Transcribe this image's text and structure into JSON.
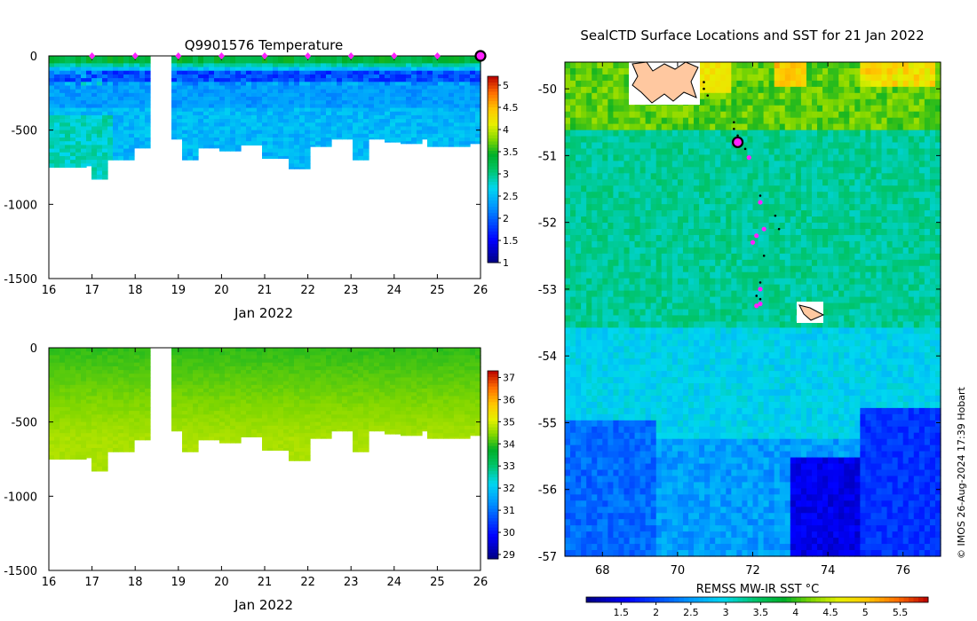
{
  "chart_data": [
    {
      "type": "heatmap",
      "title": "Q9901576  Temperature",
      "xlabel": "Jan 2022",
      "ylabel": "",
      "x_ticks": [
        "16",
        "17",
        "18",
        "19",
        "20",
        "21",
        "22",
        "23",
        "24",
        "25",
        "26"
      ],
      "y_ticks": [
        "0",
        "-500",
        "-1000",
        "-1500"
      ],
      "xlim": [
        16,
        26
      ],
      "ylim": [
        -1500,
        0
      ],
      "colorbar": {
        "min": 1,
        "max": 5.2,
        "ticks": [
          "1",
          "1.5",
          "2",
          "2.5",
          "3",
          "3.5",
          "4",
          "4.5",
          "5"
        ]
      },
      "profile_times": [
        17,
        18,
        19,
        20,
        21,
        22,
        23,
        24,
        25,
        26
      ],
      "highlight_time": 26,
      "data_gap": [
        18.35,
        18.9
      ],
      "max_depth_by_day": [
        [
          16.0,
          -750
        ],
        [
          16.9,
          -740
        ],
        [
          17.0,
          -830
        ],
        [
          17.3,
          -700
        ],
        [
          17.8,
          -700
        ],
        [
          18.0,
          -620
        ],
        [
          18.4,
          -600
        ],
        [
          18.9,
          -560
        ],
        [
          19.1,
          -700
        ],
        [
          19.5,
          -620
        ],
        [
          20.0,
          -640
        ],
        [
          20.4,
          -600
        ],
        [
          20.9,
          -600
        ],
        [
          21.0,
          -690
        ],
        [
          21.5,
          -660
        ],
        [
          21.6,
          -760
        ],
        [
          22.1,
          -610
        ],
        [
          22.5,
          -560
        ],
        [
          23.0,
          -700
        ],
        [
          23.4,
          -560
        ],
        [
          23.8,
          -580
        ],
        [
          24.2,
          -590
        ],
        [
          24.6,
          -560
        ],
        [
          24.8,
          -610
        ],
        [
          25.4,
          -610
        ],
        [
          25.8,
          -590
        ]
      ]
    },
    {
      "type": "heatmap",
      "title": "",
      "xlabel": "Jan 2022",
      "ylabel": "",
      "x_ticks": [
        "16",
        "17",
        "18",
        "19",
        "20",
        "21",
        "22",
        "23",
        "24",
        "25",
        "26"
      ],
      "y_ticks": [
        "0",
        "-500",
        "-1000",
        "-1500"
      ],
      "xlim": [
        16,
        26
      ],
      "ylim": [
        -1500,
        0
      ],
      "colorbar": {
        "min": 28.8,
        "max": 37.3,
        "ticks": [
          "29",
          "30",
          "31",
          "32",
          "33",
          "34",
          "35",
          "36",
          "37"
        ]
      },
      "data_gap": [
        18.35,
        18.9
      ]
    },
    {
      "type": "heatmap",
      "title": "SealCTD Surface Locations and SST for 21 Jan 2022",
      "xlabel": "",
      "ylabel": "",
      "x_ticks": [
        "68",
        "70",
        "72",
        "74",
        "76"
      ],
      "y_ticks": [
        "-50",
        "-51",
        "-52",
        "-53",
        "-54",
        "-55",
        "-56",
        "-57"
      ],
      "xlim": [
        67,
        77
      ],
      "ylim": [
        -57,
        -49.6
      ],
      "colorbar": {
        "label": "REMSS MW-IR SST °C",
        "min": 1,
        "max": 5.9,
        "ticks": [
          "1.5",
          "2",
          "2.5",
          "3",
          "3.5",
          "4",
          "4.5",
          "5",
          "5.5"
        ]
      },
      "surface_locations": [
        [
          71.5,
          -50.82
        ],
        [
          71.6,
          -50.85
        ],
        [
          71.9,
          -51.03
        ],
        [
          72.2,
          -51.7
        ],
        [
          72.3,
          -52.1
        ],
        [
          72.0,
          -52.3
        ],
        [
          72.1,
          -52.2
        ],
        [
          72.2,
          -53.0
        ],
        [
          72.1,
          -53.25
        ],
        [
          72.2,
          -53.22
        ]
      ],
      "current_location": [
        71.6,
        -50.8
      ],
      "track_points": [
        [
          70.7,
          -49.9
        ],
        [
          70.7,
          -50.0
        ],
        [
          70.8,
          -50.1
        ],
        [
          71.5,
          -50.5
        ],
        [
          71.5,
          -50.6
        ],
        [
          71.6,
          -50.7
        ],
        [
          71.8,
          -50.9
        ],
        [
          72.2,
          -51.6
        ],
        [
          72.6,
          -51.9
        ],
        [
          72.7,
          -52.1
        ],
        [
          72.3,
          -52.5
        ],
        [
          72.2,
          -52.9
        ],
        [
          72.1,
          -53.1
        ],
        [
          72.2,
          -53.15
        ]
      ],
      "credit": "© IMOS 26-Aug-2024 17:39 Hobart"
    }
  ],
  "colors": {
    "marker": "#ff22ff",
    "land": "#ffc8a0"
  }
}
